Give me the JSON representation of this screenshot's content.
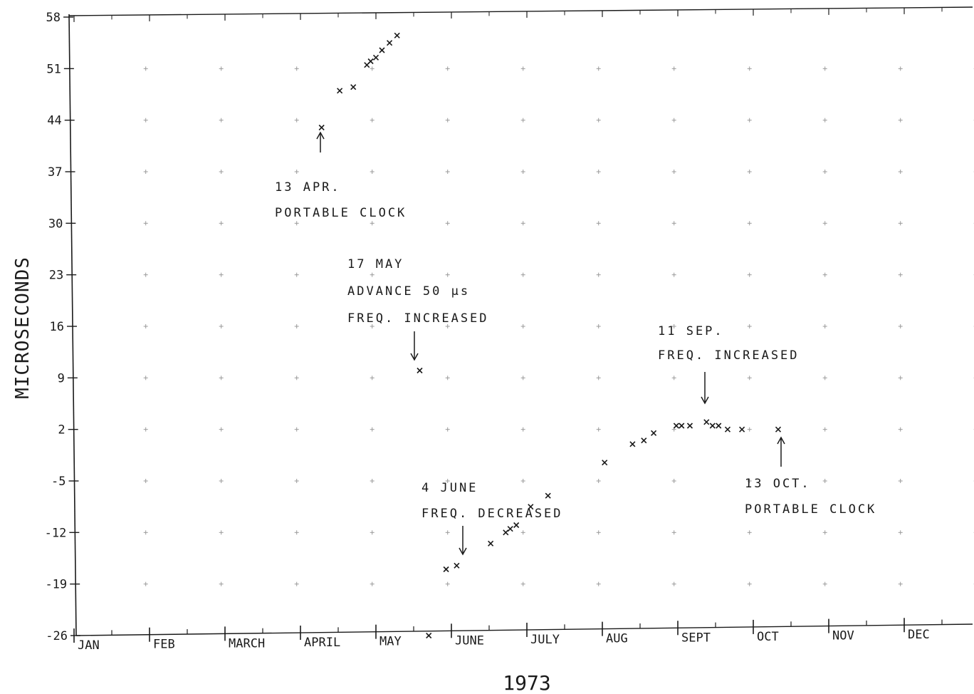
{
  "chart_data": {
    "type": "scatter",
    "title": "",
    "xlabel": "1973",
    "ylabel": "MICROSECONDS",
    "xlim": [
      0,
      12.6
    ],
    "ylim": [
      -26,
      58
    ],
    "grid": true,
    "grid_style": "faint plus markers at each tick intersection",
    "month_labels": [
      "JAN",
      "FEB",
      "MARCH",
      "APRIL",
      "MAY",
      "JUNE",
      "JULY",
      "AUG",
      "SEPT",
      "OCT",
      "NOV",
      "DEC"
    ],
    "yticks": [
      -26,
      -19,
      -12,
      -5,
      2,
      9,
      16,
      23,
      30,
      37,
      44,
      51,
      58
    ],
    "marker": "x",
    "marker_color": "#1a1a1a",
    "x_unit": "months since 1 Jan 1973",
    "series": [
      {
        "name": "",
        "points": [
          {
            "x": 3.28,
            "y": 43.0
          },
          {
            "x": 3.52,
            "y": 48.0
          },
          {
            "x": 3.7,
            "y": 48.5
          },
          {
            "x": 3.88,
            "y": 51.5
          },
          {
            "x": 3.93,
            "y": 52.0
          },
          {
            "x": 4.0,
            "y": 52.5
          },
          {
            "x": 4.08,
            "y": 53.5
          },
          {
            "x": 4.18,
            "y": 54.5
          },
          {
            "x": 4.28,
            "y": 55.5
          },
          {
            "x": 4.58,
            "y": 10.0
          },
          {
            "x": 4.7,
            "y": -26.0
          },
          {
            "x": 4.93,
            "y": -17.0
          },
          {
            "x": 5.07,
            "y": -16.5
          },
          {
            "x": 5.52,
            "y": -13.5
          },
          {
            "x": 5.72,
            "y": -12.0
          },
          {
            "x": 5.78,
            "y": -11.5
          },
          {
            "x": 5.86,
            "y": -11.0
          },
          {
            "x": 6.05,
            "y": -8.5
          },
          {
            "x": 6.28,
            "y": -7.0
          },
          {
            "x": 7.03,
            "y": -2.5
          },
          {
            "x": 7.4,
            "y": 0.0
          },
          {
            "x": 7.55,
            "y": 0.5
          },
          {
            "x": 7.68,
            "y": 1.5
          },
          {
            "x": 7.98,
            "y": 2.5
          },
          {
            "x": 8.05,
            "y": 2.5
          },
          {
            "x": 8.16,
            "y": 2.5
          },
          {
            "x": 8.38,
            "y": 3.0
          },
          {
            "x": 8.46,
            "y": 2.5
          },
          {
            "x": 8.54,
            "y": 2.5
          },
          {
            "x": 8.66,
            "y": 2.0
          },
          {
            "x": 8.85,
            "y": 2.0
          },
          {
            "x": 9.33,
            "y": 2.0
          }
        ]
      }
    ],
    "annotations": [
      {
        "lines": [
          "13 APR.",
          "PORTABLE CLOCK"
        ],
        "arrow": "up",
        "x": 3.28,
        "y": 43.0
      },
      {
        "lines": [
          "17 MAY",
          "ADVANCE 50 μs",
          "FREQ. INCREASED"
        ],
        "arrow": "down",
        "x": 4.55,
        "y": 10.0
      },
      {
        "lines": [
          "4 JUNE",
          "FREQ. DECREASED"
        ],
        "arrow": "down",
        "x": 4.88,
        "y": -16.5
      },
      {
        "lines": [
          "11 SEP.",
          "FREQ. INCREASED"
        ],
        "arrow": "down",
        "x": 8.3,
        "y": 4.0
      },
      {
        "lines": [
          "13 OCT.",
          "PORTABLE CLOCK"
        ],
        "arrow": "up",
        "x": 8.7,
        "y": 1.5
      }
    ]
  }
}
